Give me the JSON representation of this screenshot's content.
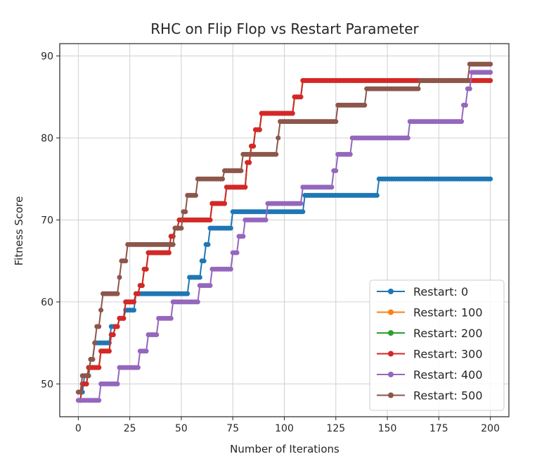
{
  "chart_data": {
    "type": "line",
    "title": "RHC on Flip Flop vs Restart Parameter",
    "xlabel": "Number of Iterations",
    "ylabel": "Fitness Score",
    "xlim": [
      -9,
      209
    ],
    "ylim": [
      46,
      91.5
    ],
    "xticks": [
      0,
      25,
      50,
      75,
      100,
      125,
      150,
      175,
      200
    ],
    "yticks": [
      50,
      60,
      70,
      80,
      90
    ],
    "grid": true,
    "legend_position": "lower-right",
    "series": [
      {
        "name": "Restart: 0",
        "color": "#1f77b4",
        "steps": [
          [
            1,
            49
          ],
          [
            3,
            51
          ],
          [
            6,
            53
          ],
          [
            8,
            55
          ],
          [
            16,
            57
          ],
          [
            20,
            58
          ],
          [
            23,
            59
          ],
          [
            28,
            61
          ],
          [
            54,
            63
          ],
          [
            60,
            65
          ],
          [
            62,
            67
          ],
          [
            64,
            69
          ],
          [
            75,
            71
          ],
          [
            110,
            73
          ],
          [
            146,
            75
          ],
          [
            200,
            75
          ]
        ]
      },
      {
        "name": "Restart: 100",
        "color": "#ff7f0e",
        "steps": [
          [
            1,
            48
          ],
          [
            2,
            50
          ],
          [
            5,
            52
          ],
          [
            11,
            54
          ],
          [
            16,
            56
          ],
          [
            18,
            57
          ],
          [
            20,
            58
          ],
          [
            23,
            60
          ],
          [
            28,
            61
          ],
          [
            30,
            62
          ],
          [
            32,
            64
          ],
          [
            34,
            66
          ],
          [
            45,
            68
          ],
          [
            47,
            69
          ],
          [
            49,
            70
          ],
          [
            65,
            72
          ],
          [
            72,
            74
          ],
          [
            82,
            77
          ],
          [
            84,
            79
          ],
          [
            86,
            81
          ],
          [
            89,
            83
          ],
          [
            105,
            85
          ],
          [
            109,
            87
          ],
          [
            200,
            87
          ]
        ]
      },
      {
        "name": "Restart: 200",
        "color": "#2ca02c",
        "steps": [
          [
            1,
            48
          ],
          [
            2,
            50
          ],
          [
            5,
            52
          ],
          [
            11,
            54
          ],
          [
            16,
            56
          ],
          [
            18,
            57
          ],
          [
            20,
            58
          ],
          [
            23,
            60
          ],
          [
            28,
            61
          ],
          [
            30,
            62
          ],
          [
            32,
            64
          ],
          [
            34,
            66
          ],
          [
            45,
            68
          ],
          [
            47,
            69
          ],
          [
            49,
            70
          ],
          [
            65,
            72
          ],
          [
            72,
            74
          ],
          [
            82,
            77
          ],
          [
            84,
            79
          ],
          [
            86,
            81
          ],
          [
            89,
            83
          ],
          [
            105,
            85
          ],
          [
            109,
            87
          ],
          [
            200,
            87
          ]
        ]
      },
      {
        "name": "Restart: 300",
        "color": "#d62728",
        "steps": [
          [
            1,
            48
          ],
          [
            2,
            50
          ],
          [
            5,
            52
          ],
          [
            11,
            54
          ],
          [
            16,
            56
          ],
          [
            18,
            57
          ],
          [
            20,
            58
          ],
          [
            23,
            60
          ],
          [
            28,
            61
          ],
          [
            30,
            62
          ],
          [
            32,
            64
          ],
          [
            34,
            66
          ],
          [
            45,
            68
          ],
          [
            47,
            69
          ],
          [
            49,
            70
          ],
          [
            65,
            72
          ],
          [
            72,
            74
          ],
          [
            82,
            77
          ],
          [
            84,
            79
          ],
          [
            86,
            81
          ],
          [
            89,
            83
          ],
          [
            105,
            85
          ],
          [
            109,
            87
          ],
          [
            200,
            87
          ]
        ]
      },
      {
        "name": "Restart: 400",
        "color": "#9467bd",
        "steps": [
          [
            0,
            48
          ],
          [
            11,
            50
          ],
          [
            20,
            52
          ],
          [
            30,
            54
          ],
          [
            34,
            56
          ],
          [
            39,
            58
          ],
          [
            46,
            60
          ],
          [
            59,
            62
          ],
          [
            65,
            64
          ],
          [
            75,
            66
          ],
          [
            78,
            68
          ],
          [
            81,
            70
          ],
          [
            92,
            72
          ],
          [
            109,
            74
          ],
          [
            124,
            76
          ],
          [
            126,
            78
          ],
          [
            133,
            80
          ],
          [
            161,
            82
          ],
          [
            187,
            84
          ],
          [
            189,
            86
          ],
          [
            191,
            88
          ],
          [
            200,
            88
          ]
        ]
      },
      {
        "name": "Restart: 500",
        "color": "#8c564b",
        "steps": [
          [
            0,
            49
          ],
          [
            2,
            51
          ],
          [
            6,
            53
          ],
          [
            8,
            55
          ],
          [
            9,
            57
          ],
          [
            11,
            59
          ],
          [
            12,
            61
          ],
          [
            20,
            63
          ],
          [
            21,
            65
          ],
          [
            24,
            67
          ],
          [
            47,
            69
          ],
          [
            51,
            71
          ],
          [
            53,
            73
          ],
          [
            58,
            75
          ],
          [
            71,
            76
          ],
          [
            80,
            78
          ],
          [
            97,
            80
          ],
          [
            98,
            82
          ],
          [
            126,
            84
          ],
          [
            140,
            86
          ],
          [
            166,
            87
          ],
          [
            190,
            89
          ],
          [
            200,
            89
          ]
        ]
      }
    ]
  }
}
